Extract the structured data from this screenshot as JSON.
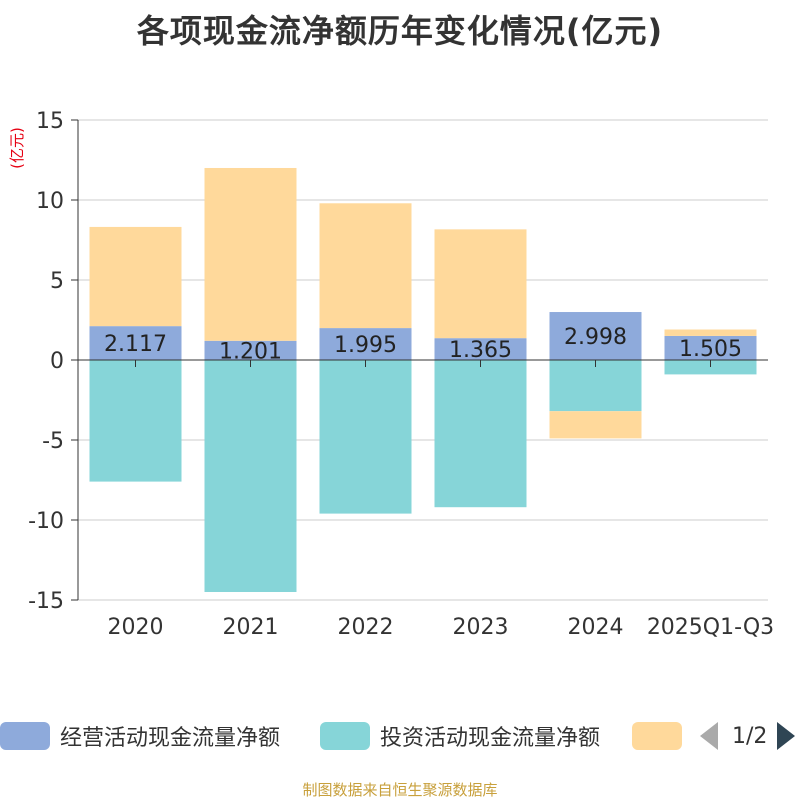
{
  "chart_data": {
    "type": "bar",
    "stacked": true,
    "title": "各项现金流净额历年变化情况(亿元)",
    "ylabel": "(亿元)",
    "ylim": [
      -15,
      15
    ],
    "yticks": [
      15,
      10,
      5,
      0,
      -5,
      -10,
      -15
    ],
    "ytick_labels": [
      "15",
      "10",
      "5",
      "0",
      "-5",
      "-10",
      "-15"
    ],
    "grid": true,
    "categories": [
      "2020",
      "2021",
      "2022",
      "2023",
      "2024",
      "2025Q1-Q3"
    ],
    "series": [
      {
        "name": "经营活动现金流量净额",
        "color": "#8eaadb",
        "values": [
          2.117,
          1.201,
          1.995,
          1.365,
          2.998,
          1.505
        ],
        "labels": [
          "2.117",
          "1.201",
          "1.995",
          "1.365",
          "2.998",
          "1.505"
        ]
      },
      {
        "name": "投资活动现金流量净额",
        "color": "#86d5d8",
        "values": [
          -7.6,
          -14.5,
          -9.6,
          -9.2,
          -3.2,
          -0.9
        ]
      },
      {
        "name": "",
        "color": "#ffd99b",
        "values": [
          6.2,
          10.8,
          7.8,
          6.8,
          -1.7,
          0.4
        ]
      }
    ]
  },
  "legend": {
    "pager": "1/2"
  },
  "source": "制图数据来自恒生聚源数据库"
}
